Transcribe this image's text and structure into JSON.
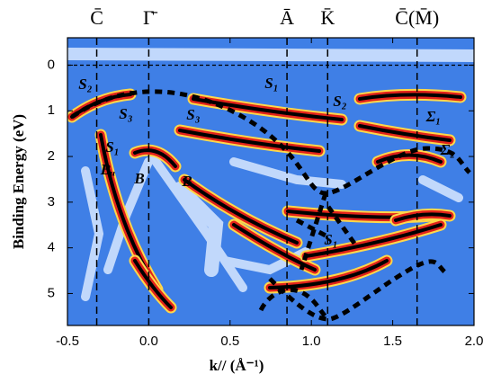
{
  "chart_data": {
    "type": "image-map",
    "xlabel": "k// (Å⁻¹)",
    "ylabel": "Binding Energy (eV)",
    "xlim": [
      -0.5,
      2.0
    ],
    "ylim": [
      -0.6,
      5.7
    ],
    "y_inverted": true,
    "xticks": [
      -0.5,
      {
        "value": 0,
        "label": "0.0"
      },
      0.5,
      {
        "value": 1,
        "label": "1.0"
      },
      1.5,
      {
        "value": 2,
        "label": "2.0"
      }
    ],
    "yticks": [
      0,
      1,
      2,
      3,
      4,
      5
    ],
    "hlines": [
      0
    ],
    "symmetry_points": {
      "labels": [
        "C̄",
        "Γ̄",
        "Ā",
        "K̄",
        "C̄(M̄)"
      ],
      "x": [
        -0.32,
        0.0,
        0.85,
        1.1,
        1.65
      ]
    },
    "band_labels": [
      "S₂",
      "S₃",
      "S₁",
      "Bᵤ",
      "B",
      "B",
      "S₁",
      "S₃",
      "S₂",
      "Σ₁",
      "Σ₂",
      "S₁"
    ]
  }
}
